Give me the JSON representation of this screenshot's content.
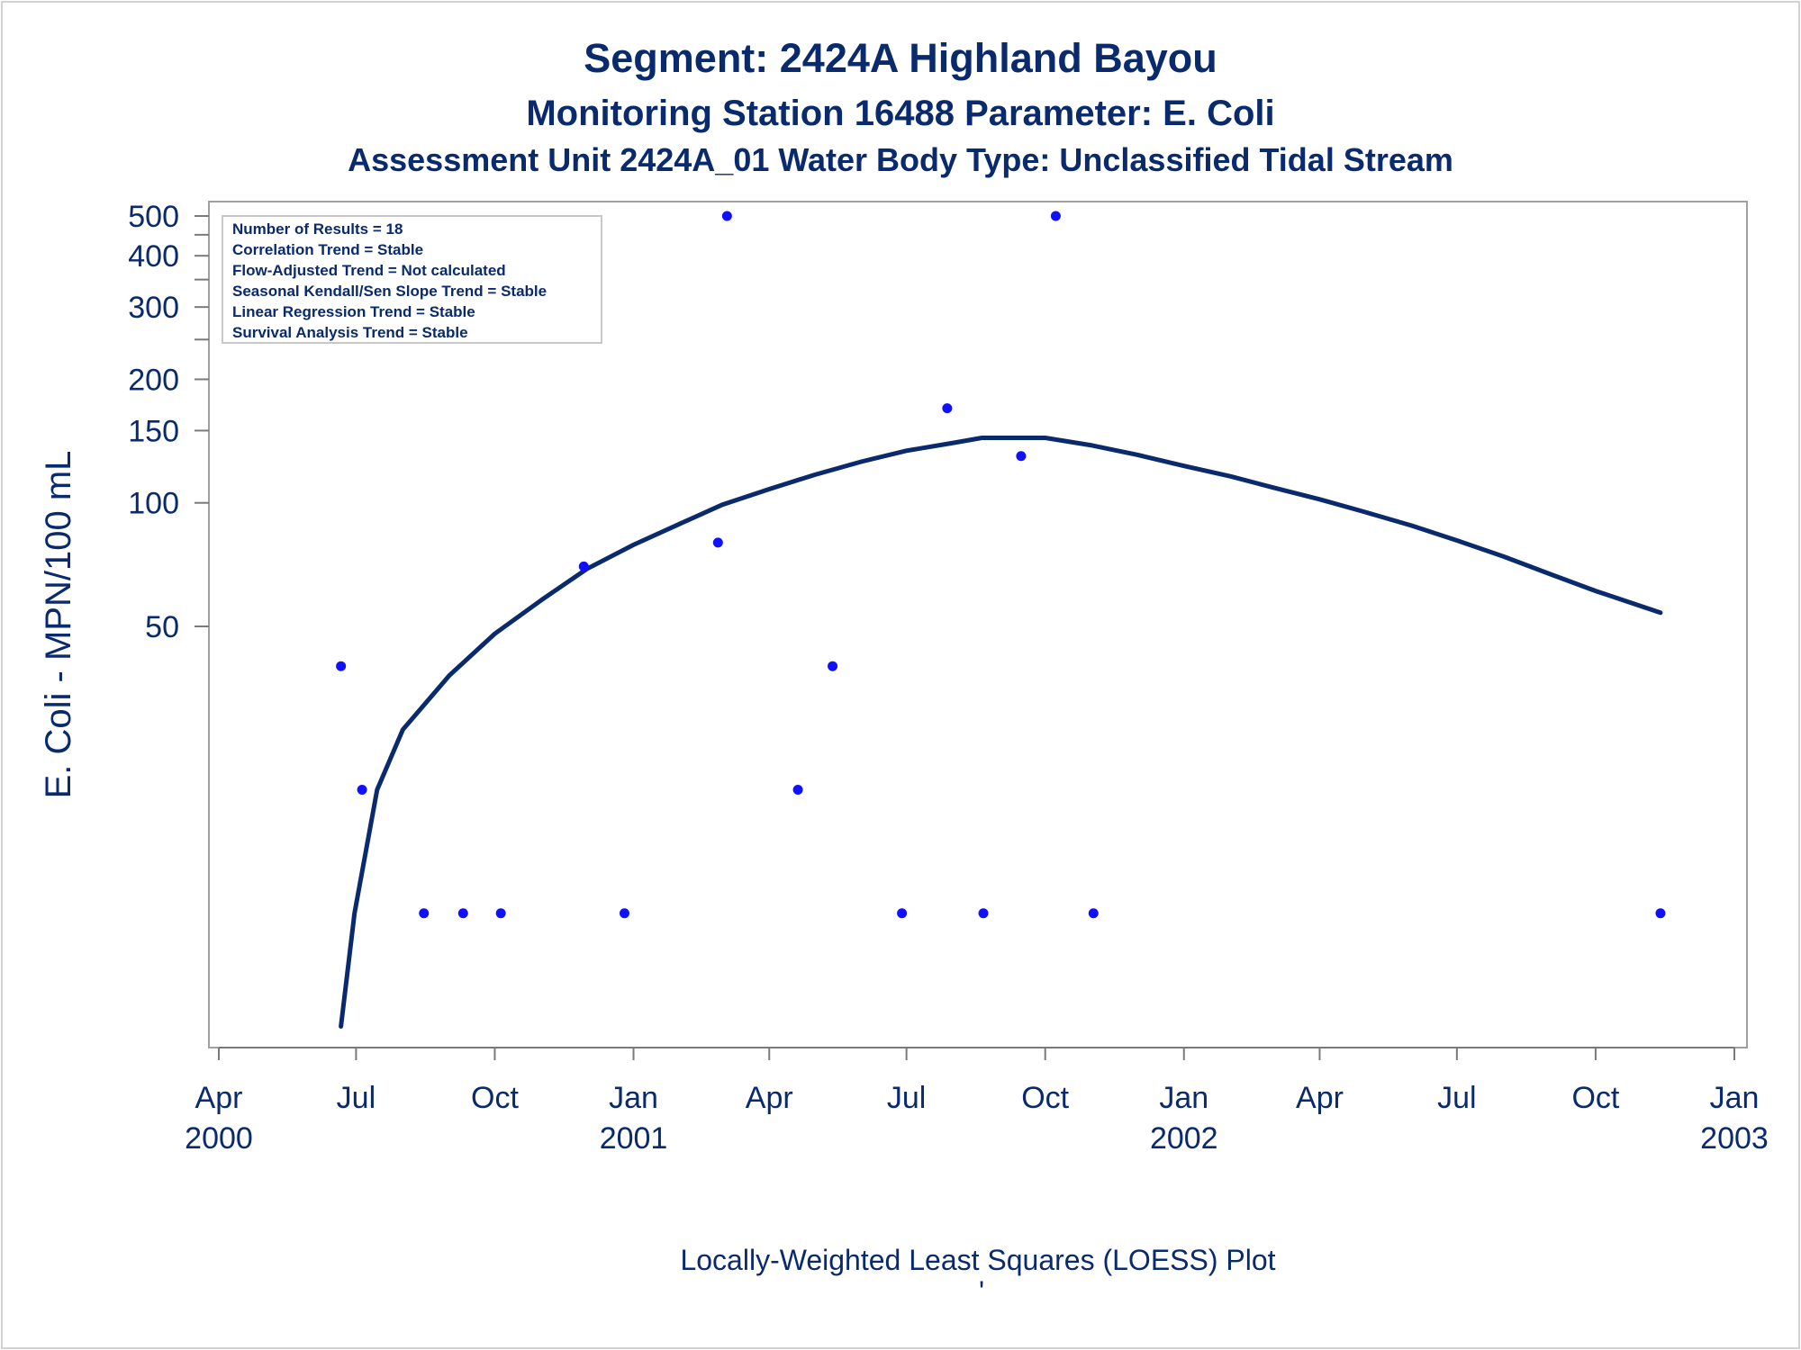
{
  "chart_data": {
    "type": "scatter",
    "title": "Segment: 2424A  Highland Bayou",
    "subtitle": "Monitoring Station 16488 Parameter: E. Coli",
    "subtitle2": "Assessment Unit 2424A_01   Water Body Type: Unclassified Tidal Stream",
    "ylabel": "E. Coli - MPN/100 mL",
    "footnote": "Locally-Weighted Least Squares (LOESS) Plot",
    "footnote_mark": "'",
    "yscale": "log",
    "ylim": [
      5,
      500
    ],
    "xlim": [
      "2000-04-01",
      "2003-01-01"
    ],
    "ytick_values": [
      50,
      100,
      150,
      200,
      300,
      400,
      500
    ],
    "ytick_labels": [
      "50",
      "100",
      "150",
      "200",
      "300",
      "400",
      "500"
    ],
    "yminor_ticks": [
      250,
      350,
      450
    ],
    "xticks": [
      {
        "date": "2000-04-01",
        "month": "Apr",
        "year": "2000"
      },
      {
        "date": "2000-07-01",
        "month": "Jul",
        "year": ""
      },
      {
        "date": "2000-10-01",
        "month": "Oct",
        "year": ""
      },
      {
        "date": "2001-01-01",
        "month": "Jan",
        "year": "2001"
      },
      {
        "date": "2001-04-01",
        "month": "Apr",
        "year": ""
      },
      {
        "date": "2001-07-01",
        "month": "Jul",
        "year": ""
      },
      {
        "date": "2001-10-01",
        "month": "Oct",
        "year": ""
      },
      {
        "date": "2002-01-01",
        "month": "Jan",
        "year": "2002"
      },
      {
        "date": "2002-04-01",
        "month": "Apr",
        "year": ""
      },
      {
        "date": "2002-07-01",
        "month": "Jul",
        "year": ""
      },
      {
        "date": "2002-10-01",
        "month": "Oct",
        "year": ""
      },
      {
        "date": "2003-01-01",
        "month": "Jan",
        "year": "2003"
      }
    ],
    "stats_box": [
      "Number of Results = 18",
      "Correlation Trend = Stable",
      "Flow-Adjusted Trend = Not calculated",
      "Seasonal Kendall/Sen Slope Trend = Stable",
      "Linear Regression Trend = Stable",
      "Survival Analysis Trend = Stable"
    ],
    "stats_box_position": "top-left",
    "series": [
      {
        "kind": "points",
        "color": "#1010ff",
        "points": [
          {
            "x": "2000-06-21",
            "y": 40
          },
          {
            "x": "2000-07-05",
            "y": 20
          },
          {
            "x": "2000-08-15",
            "y": 10
          },
          {
            "x": "2000-09-10",
            "y": 10
          },
          {
            "x": "2000-10-05",
            "y": 10
          },
          {
            "x": "2000-12-26",
            "y": 10
          },
          {
            "x": "2001-02-26",
            "y": 80
          },
          {
            "x": "2001-03-04",
            "y": 500
          },
          {
            "x": "2001-04-20",
            "y": 20
          },
          {
            "x": "2001-05-13",
            "y": 40
          },
          {
            "x": "2001-06-28",
            "y": 10
          },
          {
            "x": "2001-07-28",
            "y": 170
          },
          {
            "x": "2001-08-21",
            "y": 10
          },
          {
            "x": "2001-09-15",
            "y": 130
          },
          {
            "x": "2001-10-08",
            "y": 500
          },
          {
            "x": "2001-11-02",
            "y": 10
          },
          {
            "x": "2000-11-29",
            "y": 70
          },
          {
            "x": "2002-11-13",
            "y": 10
          }
        ]
      },
      {
        "kind": "loess",
        "color": "#0a2a6e",
        "points": [
          {
            "x": "2000-06-21",
            "y": 5.3
          },
          {
            "x": "2000-06-30",
            "y": 10
          },
          {
            "x": "2000-07-15",
            "y": 20
          },
          {
            "x": "2000-08-01",
            "y": 28
          },
          {
            "x": "2000-09-01",
            "y": 38
          },
          {
            "x": "2000-10-01",
            "y": 48
          },
          {
            "x": "2000-11-01",
            "y": 58
          },
          {
            "x": "2000-12-01",
            "y": 69
          },
          {
            "x": "2001-01-01",
            "y": 79
          },
          {
            "x": "2001-02-01",
            "y": 89
          },
          {
            "x": "2001-03-01",
            "y": 99
          },
          {
            "x": "2001-04-01",
            "y": 108
          },
          {
            "x": "2001-05-01",
            "y": 117
          },
          {
            "x": "2001-06-01",
            "y": 126
          },
          {
            "x": "2001-07-01",
            "y": 134
          },
          {
            "x": "2001-08-01",
            "y": 140
          },
          {
            "x": "2001-08-20",
            "y": 144
          },
          {
            "x": "2001-10-01",
            "y": 144
          },
          {
            "x": "2001-11-01",
            "y": 138
          },
          {
            "x": "2001-12-01",
            "y": 131
          },
          {
            "x": "2002-01-01",
            "y": 123
          },
          {
            "x": "2002-02-01",
            "y": 116
          },
          {
            "x": "2002-03-01",
            "y": 109
          },
          {
            "x": "2002-04-01",
            "y": 102
          },
          {
            "x": "2002-05-01",
            "y": 95
          },
          {
            "x": "2002-06-01",
            "y": 88
          },
          {
            "x": "2002-07-01",
            "y": 81
          },
          {
            "x": "2002-08-01",
            "y": 74
          },
          {
            "x": "2002-09-01",
            "y": 67
          },
          {
            "x": "2002-10-01",
            "y": 61
          },
          {
            "x": "2002-11-13",
            "y": 54
          }
        ]
      }
    ]
  }
}
